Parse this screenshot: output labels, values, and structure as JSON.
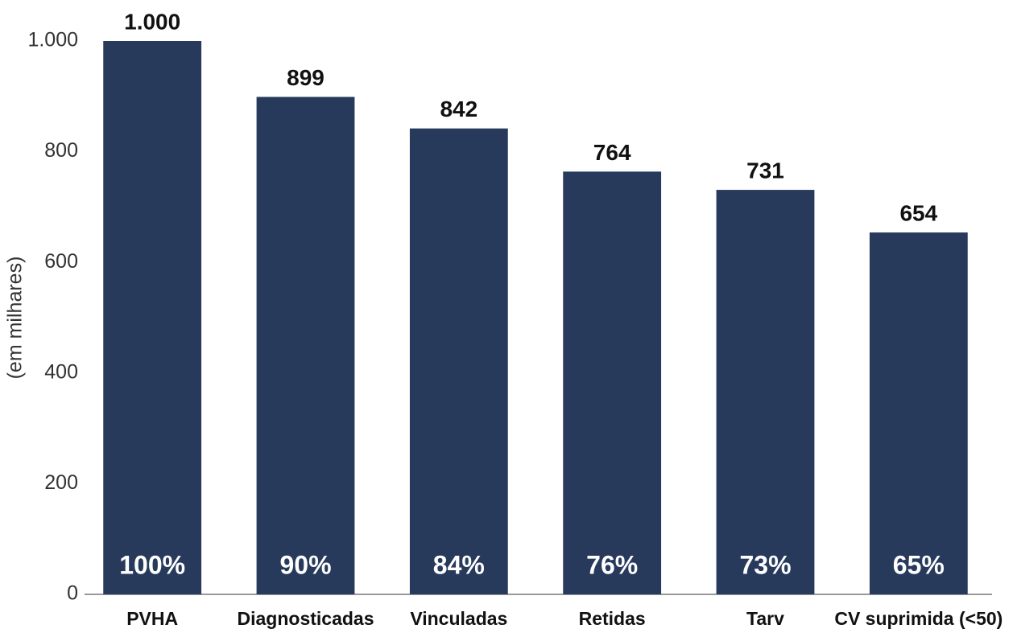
{
  "chart_data": {
    "type": "bar",
    "y_label": "(em milhares)",
    "categories": [
      "PVHA",
      "Diagnosticadas",
      "Vinculadas",
      "Retidas",
      "Tarv",
      "CV suprimida (<50)"
    ],
    "values": [
      1000,
      899,
      842,
      764,
      731,
      654
    ],
    "value_labels": [
      "1.000",
      "899",
      "842",
      "764",
      "731",
      "654"
    ],
    "percent_values": [
      100,
      90,
      84,
      76,
      73,
      65
    ],
    "percent_labels": [
      "100%",
      "90%",
      "84%",
      "76%",
      "73%",
      "65%"
    ],
    "color": "#283a5c",
    "ylim": [
      0,
      1000
    ],
    "yticks": [
      0,
      200,
      400,
      600,
      800,
      {
        "value": 1000,
        "label": "1.000"
      }
    ],
    "grid": false
  }
}
